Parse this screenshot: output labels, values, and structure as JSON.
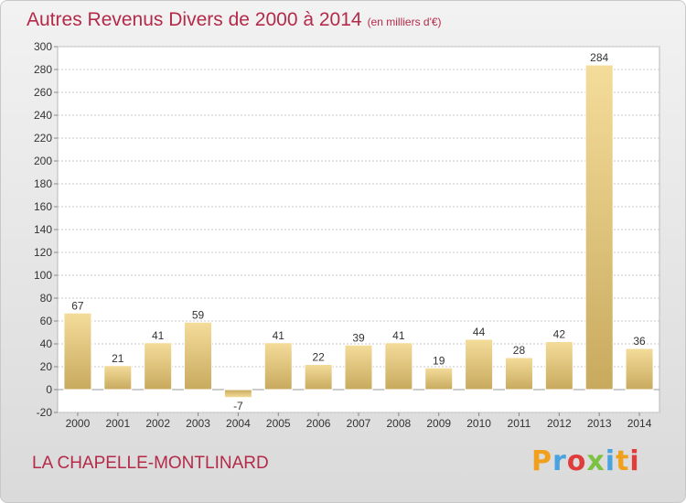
{
  "header": {
    "title": "Autres Revenus Divers de 2000 à 2014",
    "unit": "(en milliers d'€)"
  },
  "footer": {
    "place": "LA CHAPELLE-MONTLINARD",
    "brand": "Proxiti",
    "brand_colors": [
      "#f0a01c",
      "#4aa3df",
      "#e03c3c",
      "#7cc242",
      "#4aa3df",
      "#f0a01c",
      "#e03c3c"
    ]
  },
  "chart_data": {
    "type": "bar",
    "title": "Autres Revenus Divers de 2000 à 2014",
    "subtitle": "(en milliers d'€)",
    "xlabel": "",
    "ylabel": "",
    "categories": [
      "2000",
      "2001",
      "2002",
      "2003",
      "2004",
      "2005",
      "2006",
      "2007",
      "2008",
      "2009",
      "2010",
      "2011",
      "2012",
      "2013",
      "2014"
    ],
    "values": [
      67,
      21,
      41,
      59,
      -7,
      41,
      22,
      39,
      41,
      19,
      44,
      28,
      42,
      284,
      36
    ],
    "ylim": [
      -20,
      300
    ],
    "yticks": [
      -20,
      0,
      20,
      40,
      60,
      80,
      100,
      120,
      140,
      160,
      180,
      200,
      220,
      240,
      260,
      280,
      300
    ],
    "grid": true,
    "legend": "none",
    "colors": {
      "bar_light": "#f4dc9a",
      "bar_dark": "#c8aa5e",
      "grid": "#c8c8c8",
      "axis_text": "#333333",
      "title": "#b42a49"
    }
  }
}
